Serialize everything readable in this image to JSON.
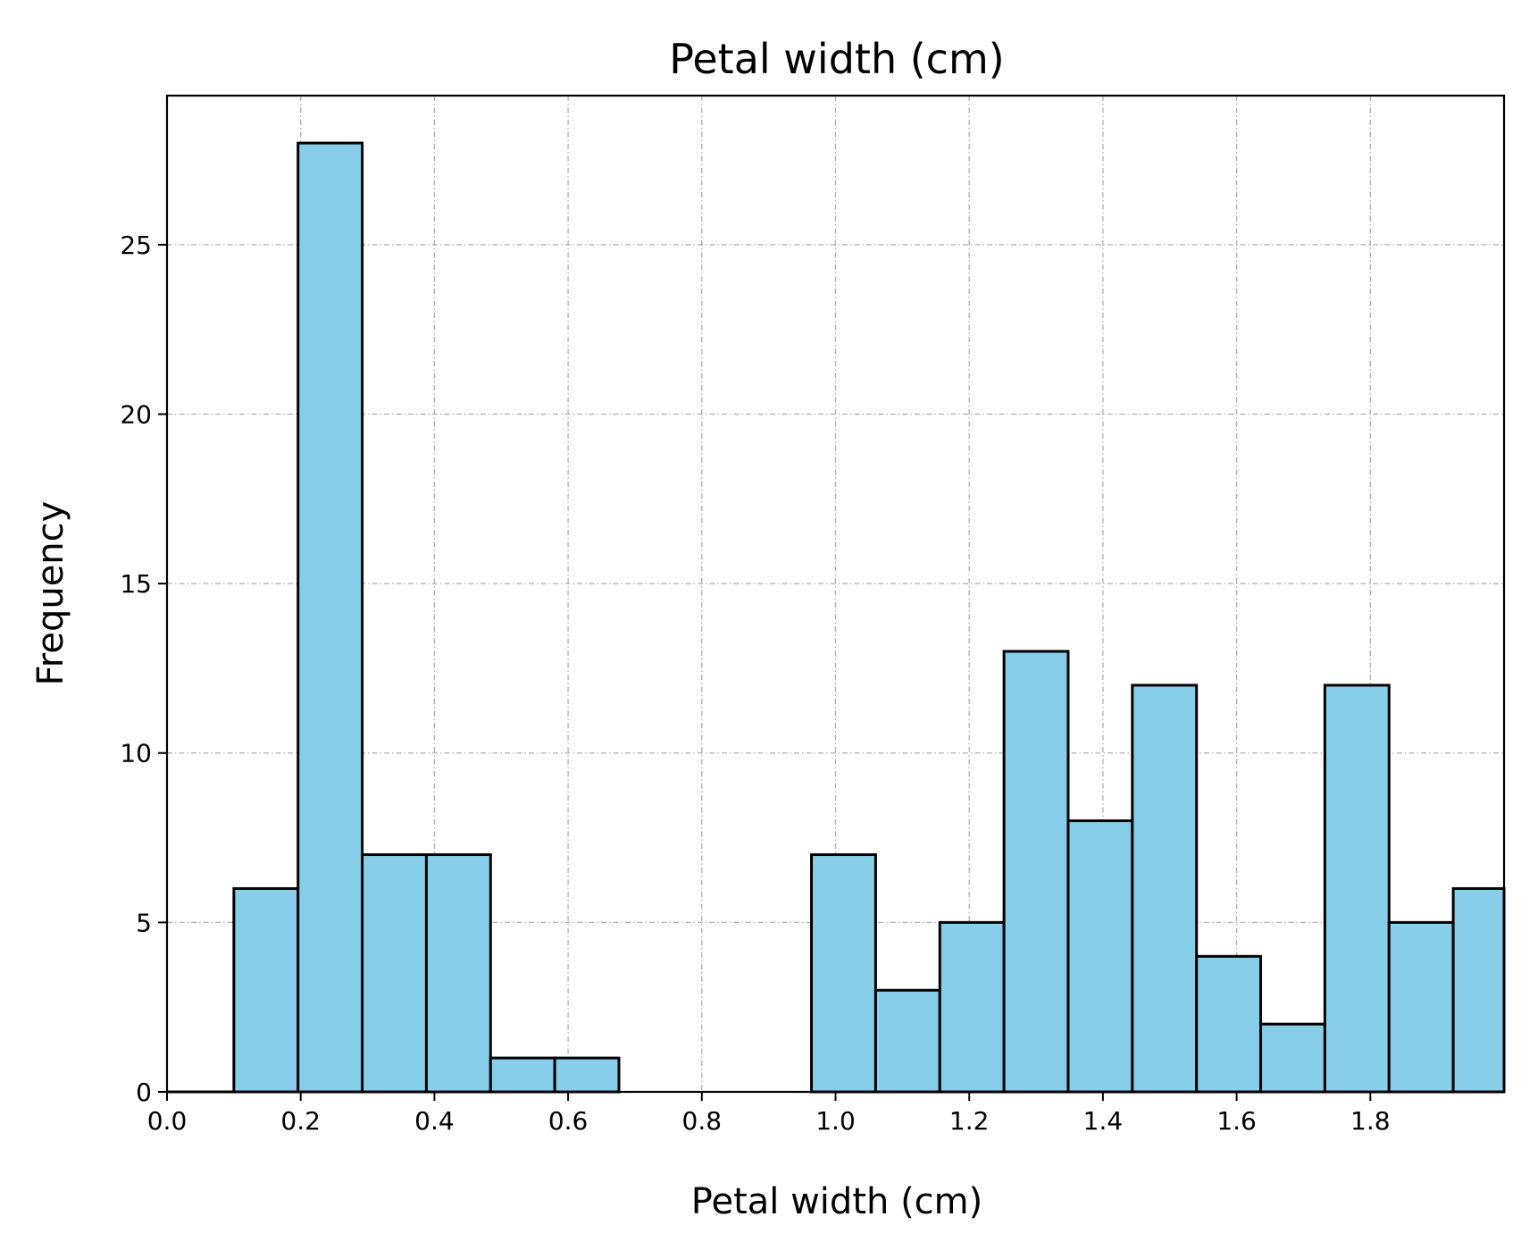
{
  "chart_data": {
    "type": "bar",
    "title": "Petal width (cm)",
    "xlabel": "Petal width (cm)",
    "ylabel": "Frequency",
    "bin_edges": [
      0.1,
      0.196,
      0.292,
      0.388,
      0.484,
      0.58,
      0.676,
      0.772,
      0.868,
      0.964,
      1.06,
      1.156,
      1.252,
      1.348,
      1.444,
      1.54,
      1.636,
      1.732,
      1.828,
      1.924,
      2.02
    ],
    "values": [
      6,
      28,
      7,
      7,
      1,
      1,
      0,
      0,
      0,
      7,
      3,
      5,
      13,
      8,
      12,
      4,
      2,
      12,
      5,
      6
    ],
    "xlim": [
      0.0,
      2.0
    ],
    "ylim": [
      0,
      29.4
    ],
    "xticks": [
      "0.0",
      "0.2",
      "0.4",
      "0.6",
      "0.8",
      "1.0",
      "1.2",
      "1.4",
      "1.6",
      "1.8"
    ],
    "xtick_values": [
      0.0,
      0.2,
      0.4,
      0.6,
      0.8,
      1.0,
      1.2,
      1.4,
      1.6,
      1.8
    ],
    "yticks": [
      "0",
      "5",
      "10",
      "15",
      "20",
      "25"
    ],
    "ytick_values": [
      0,
      5,
      10,
      15,
      20,
      25
    ],
    "grid": true,
    "colors": {
      "bar_fill": "#87CEEB",
      "bar_edge": "#000000",
      "grid": "#b0b0b0"
    }
  }
}
